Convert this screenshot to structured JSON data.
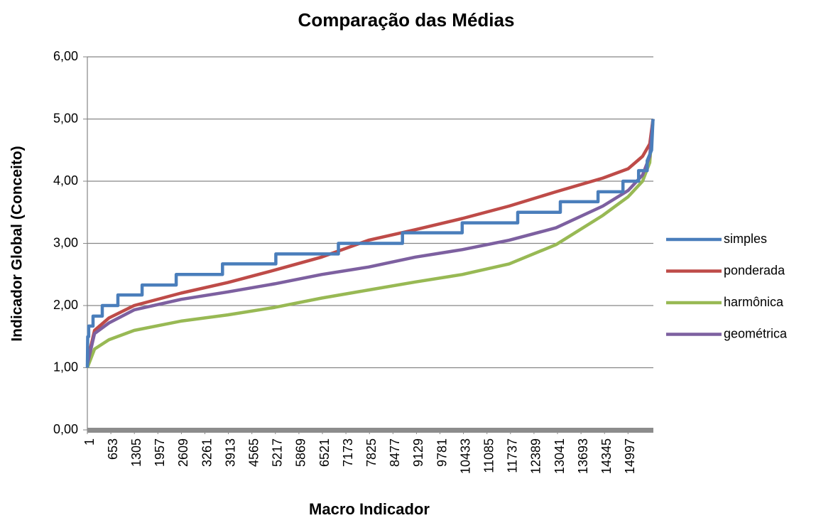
{
  "chart_data": {
    "type": "line",
    "title": "Comparação das Médias",
    "x_label": "Macro Indicador",
    "y_label": "Indicador Global (Conceito)",
    "xlim": [
      1,
      15700
    ],
    "xticks": [
      1,
      653,
      1305,
      1957,
      2609,
      3261,
      3913,
      4565,
      5217,
      5869,
      6521,
      7173,
      7825,
      8477,
      9129,
      9781,
      10433,
      11085,
      11737,
      12389,
      13041,
      13693,
      14345,
      14997
    ],
    "ylim": [
      0,
      6
    ],
    "yticks": [
      {
        "value": 0,
        "label": "0,00"
      },
      {
        "value": 1,
        "label": "1,00"
      },
      {
        "value": 2,
        "label": "2,00"
      },
      {
        "value": 3,
        "label": "3,00"
      },
      {
        "value": 4,
        "label": "4,00"
      },
      {
        "value": 5,
        "label": "5,00"
      },
      {
        "value": 6,
        "label": "6,00"
      }
    ],
    "grid": true,
    "legend": "right",
    "series": [
      {
        "name": "simples",
        "color": "#4a7ebb",
        "x": [
          1,
          10,
          39,
          39,
          158,
          158,
          414,
          414,
          848,
          848,
          1519,
          1519,
          2466,
          2466,
          3749,
          3749,
          5228,
          5228,
          6965,
          6965,
          8740,
          8740,
          10398,
          10398,
          11937,
          11937,
          13120,
          13120,
          14166,
          14166,
          14857,
          14857,
          15291,
          15291,
          15528,
          15528,
          15650,
          15690
        ],
        "values": [
          1.0,
          1.5,
          1.5,
          1.67,
          1.67,
          1.83,
          1.83,
          2.0,
          2.0,
          2.17,
          2.17,
          2.33,
          2.33,
          2.5,
          2.5,
          2.67,
          2.67,
          2.83,
          2.83,
          3.0,
          3.0,
          3.17,
          3.17,
          3.33,
          3.33,
          3.5,
          3.5,
          3.67,
          3.67,
          3.83,
          3.83,
          4.0,
          4.0,
          4.17,
          4.17,
          4.33,
          4.5,
          5.0
        ]
      },
      {
        "name": "ponderada",
        "color": "#be4b48",
        "x": [
          1,
          200,
          600,
          1300,
          2600,
          3900,
          5200,
          6500,
          7800,
          9100,
          10400,
          11700,
          13000,
          14300,
          15000,
          15400,
          15600,
          15690
        ],
        "values": [
          1.1,
          1.6,
          1.8,
          2.0,
          2.2,
          2.37,
          2.57,
          2.78,
          3.05,
          3.22,
          3.4,
          3.6,
          3.83,
          4.05,
          4.2,
          4.4,
          4.6,
          5.0
        ]
      },
      {
        "name": "harmônica",
        "color": "#98b954",
        "x": [
          1,
          200,
          600,
          1300,
          2600,
          3900,
          5200,
          6500,
          7800,
          9100,
          10400,
          11700,
          13000,
          14300,
          15000,
          15400,
          15600,
          15690
        ],
        "values": [
          1.0,
          1.3,
          1.45,
          1.6,
          1.75,
          1.85,
          1.97,
          2.12,
          2.25,
          2.38,
          2.5,
          2.67,
          2.98,
          3.45,
          3.75,
          4.0,
          4.3,
          5.0
        ]
      },
      {
        "name": "geométrica",
        "color": "#7d60a0",
        "x": [
          1,
          200,
          600,
          1300,
          2600,
          3900,
          5200,
          6500,
          7800,
          9100,
          10400,
          11700,
          13000,
          14300,
          15000,
          15400,
          15600,
          15690
        ],
        "values": [
          1.05,
          1.55,
          1.72,
          1.93,
          2.1,
          2.22,
          2.35,
          2.5,
          2.62,
          2.78,
          2.9,
          3.05,
          3.25,
          3.6,
          3.85,
          4.1,
          4.4,
          5.0
        ]
      }
    ]
  }
}
